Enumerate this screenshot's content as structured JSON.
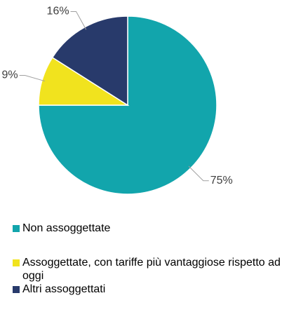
{
  "chart_data": {
    "type": "pie",
    "categories": [
      "Non assoggettate",
      "Assoggettate, con tariffe più vantaggiose rispetto ad oggi",
      "Altri assoggettati"
    ],
    "values": [
      75,
      9,
      16
    ],
    "value_labels": [
      "75%",
      "9%",
      "16%"
    ],
    "colors": [
      "#12a5ac",
      "#f1e31e",
      "#283a6b"
    ],
    "legend": "bottom"
  }
}
